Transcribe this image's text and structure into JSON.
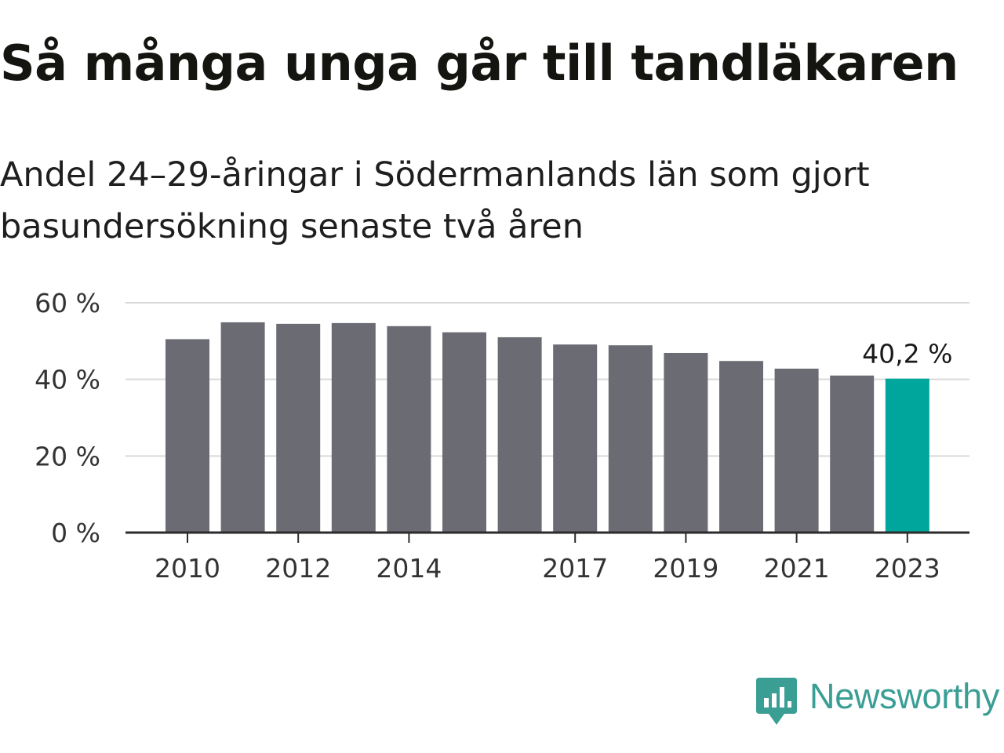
{
  "title": "Så många unga går till tandläkaren",
  "subtitle": "Andel 24–29-åringar i Södermanlands län som gjort basundersökning senaste två åren",
  "chart_data": {
    "type": "bar",
    "categories": [
      "2010",
      "2011",
      "2012",
      "2013",
      "2014",
      "2015",
      "2016",
      "2017",
      "2018",
      "2019",
      "2020",
      "2021",
      "2022",
      "2023"
    ],
    "values": [
      50.5,
      54.9,
      54.5,
      54.7,
      53.9,
      52.3,
      51.0,
      49.1,
      48.9,
      46.9,
      44.8,
      42.8,
      41.0,
      40.2
    ],
    "x_tick_labels": [
      "2010",
      "",
      "2012",
      "",
      "2014",
      "",
      "",
      "2017",
      "",
      "2019",
      "",
      "2021",
      "",
      "2023"
    ],
    "y_ticks": [
      0,
      20,
      40,
      60
    ],
    "y_tick_labels": [
      "0 %",
      "20 %",
      "40 %",
      "60 %"
    ],
    "ylim": [
      0,
      60
    ],
    "highlight_index": 13,
    "highlight_label": "40,2 %",
    "grid": true,
    "colors": {
      "bar": "#6b6b73",
      "highlight": "#00a59b",
      "grid": "#d9d9d9",
      "axis": "#2b2b2b",
      "tick_text": "#333333"
    }
  },
  "brand": {
    "name": "Newsworthy",
    "icon": "newsworthy-logo-icon",
    "color": "#3a9e94"
  }
}
